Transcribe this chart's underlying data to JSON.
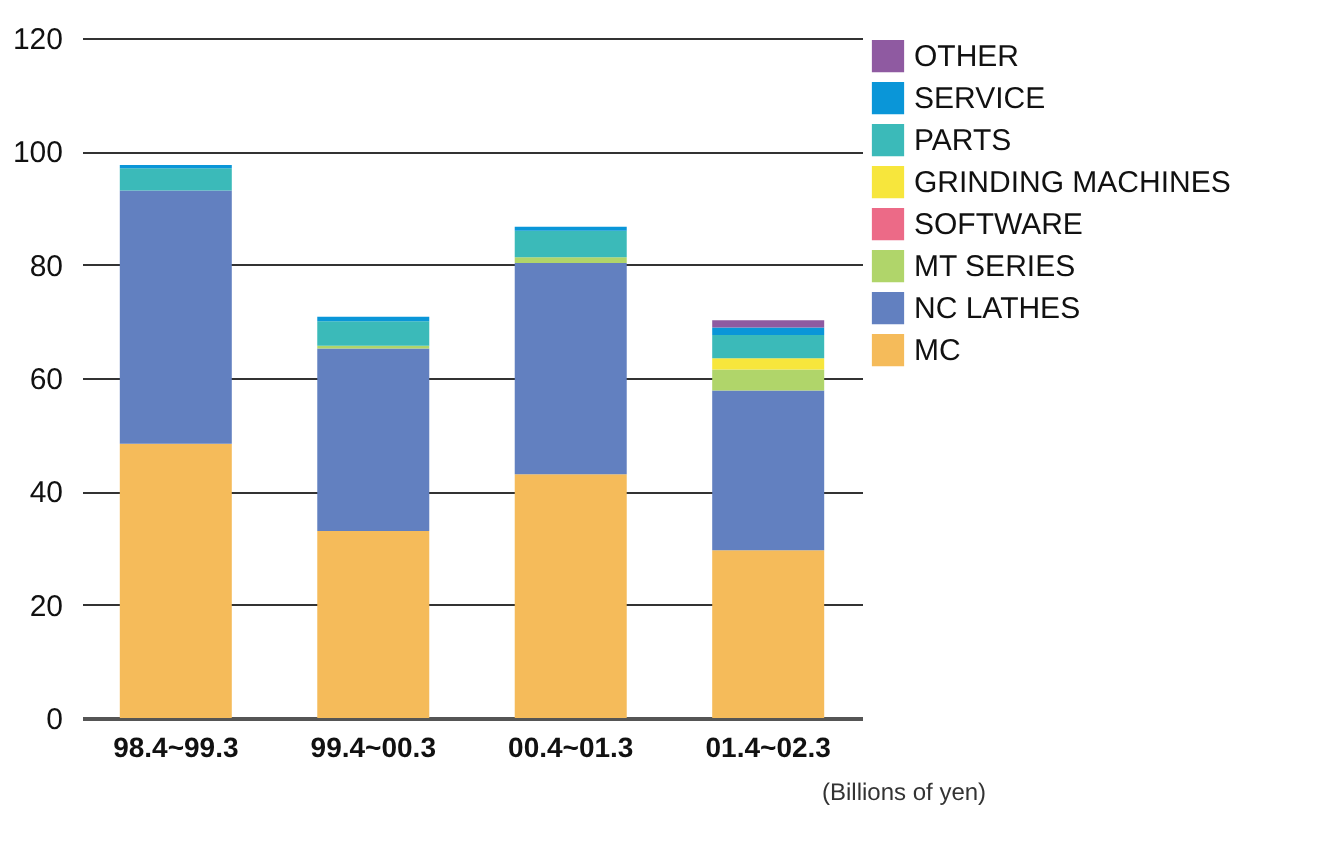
{
  "chart_data": {
    "type": "bar",
    "stacked": true,
    "categories": [
      "98.4~99.3",
      "99.4~00.3",
      "00.4~01.3",
      "01.4~02.3"
    ],
    "series": [
      {
        "name": "MC",
        "color": "#f5bb5a",
        "values": [
          48.4,
          33.0,
          43.0,
          29.6
        ]
      },
      {
        "name": "NC LATHES",
        "color": "#6280c0",
        "values": [
          44.7,
          32.2,
          37.3,
          28.2
        ]
      },
      {
        "name": "MT SERIES",
        "color": "#b0d56a",
        "values": [
          0,
          0.5,
          1.0,
          3.7
        ]
      },
      {
        "name": "SOFTWARE",
        "color": "#ec6a87",
        "values": [
          0,
          0,
          0,
          0
        ]
      },
      {
        "name": "GRINDING MACHINES",
        "color": "#f7e63c",
        "values": [
          0,
          0,
          0,
          2.0
        ]
      },
      {
        "name": "PARTS",
        "color": "#3bbab9",
        "values": [
          3.9,
          4.3,
          4.7,
          4.1
        ]
      },
      {
        "name": "SERVICE",
        "color": "#0a96d8",
        "values": [
          0.6,
          0.8,
          0.7,
          1.3
        ]
      },
      {
        "name": "OTHER",
        "color": "#8f5aa1",
        "values": [
          0,
          0,
          0,
          1.3
        ]
      }
    ],
    "ylim": [
      0,
      120
    ],
    "yticks": [
      0,
      20,
      40,
      60,
      80,
      100,
      120
    ],
    "grid": "y",
    "legend": "right",
    "annotations": [
      "(Billions of yen)"
    ]
  }
}
